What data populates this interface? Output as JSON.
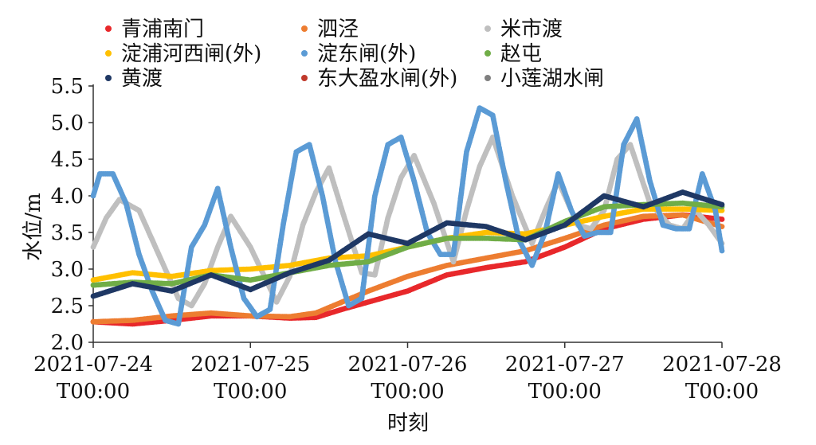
{
  "chart_data": {
    "type": "scatter",
    "xlabel": "时刻",
    "ylabel": "水位/m",
    "ylim": [
      2.0,
      5.5
    ],
    "xlim": [
      "2021-07-24T00:00",
      "2021-07-28T00:00"
    ],
    "yticks": [
      "2.0",
      "2.5",
      "3.0",
      "3.5",
      "4.0",
      "4.5",
      "5.0",
      "5.5"
    ],
    "xticks": [
      {
        "date": "2021-07-24",
        "time": "T00:00"
      },
      {
        "date": "2021-07-25",
        "time": "T00:00"
      },
      {
        "date": "2021-07-26",
        "time": "T00:00"
      },
      {
        "date": "2021-07-27",
        "time": "T00:00"
      },
      {
        "date": "2021-07-28",
        "time": "T00:00"
      }
    ],
    "legend_position": "top",
    "series": [
      {
        "name": "青浦南门",
        "color": "#e8282b",
        "points": [
          [
            "2021-07-24T00:00",
            2.28
          ],
          [
            "2021-07-24T06:00",
            2.25
          ],
          [
            "2021-07-24T12:00",
            2.3
          ],
          [
            "2021-07-24T18:00",
            2.36
          ],
          [
            "2021-07-25T00:00",
            2.36
          ],
          [
            "2021-07-25T06:00",
            2.33
          ],
          [
            "2021-07-25T10:00",
            2.34
          ],
          [
            "2021-07-25T14:00",
            2.45
          ],
          [
            "2021-07-25T18:00",
            2.55
          ],
          [
            "2021-07-26T00:00",
            2.7
          ],
          [
            "2021-07-26T06:00",
            2.92
          ],
          [
            "2021-07-26T12:00",
            3.02
          ],
          [
            "2021-07-26T18:00",
            3.1
          ],
          [
            "2021-07-27T00:00",
            3.3
          ],
          [
            "2021-07-27T06:00",
            3.55
          ],
          [
            "2021-07-27T12:00",
            3.68
          ],
          [
            "2021-07-27T18:00",
            3.74
          ],
          [
            "2021-07-28T00:00",
            3.68
          ]
        ]
      },
      {
        "name": "泗泾",
        "color": "#ed7d31",
        "points": [
          [
            "2021-07-24T00:00",
            2.28
          ],
          [
            "2021-07-24T06:00",
            2.3
          ],
          [
            "2021-07-24T12:00",
            2.36
          ],
          [
            "2021-07-24T18:00",
            2.4
          ],
          [
            "2021-07-25T00:00",
            2.36
          ],
          [
            "2021-07-25T06:00",
            2.35
          ],
          [
            "2021-07-25T10:00",
            2.4
          ],
          [
            "2021-07-25T14:00",
            2.55
          ],
          [
            "2021-07-25T18:00",
            2.7
          ],
          [
            "2021-07-26T00:00",
            2.9
          ],
          [
            "2021-07-26T06:00",
            3.05
          ],
          [
            "2021-07-26T12:00",
            3.15
          ],
          [
            "2021-07-26T18:00",
            3.25
          ],
          [
            "2021-07-27T00:00",
            3.42
          ],
          [
            "2021-07-27T06:00",
            3.6
          ],
          [
            "2021-07-27T12:00",
            3.72
          ],
          [
            "2021-07-27T18:00",
            3.74
          ],
          [
            "2021-07-28T00:00",
            3.58
          ]
        ]
      },
      {
        "name": "米市渡",
        "color": "#bfbfbf",
        "points": [
          [
            "2021-07-24T00:00",
            3.3
          ],
          [
            "2021-07-24T02:00",
            3.7
          ],
          [
            "2021-07-24T04:00",
            3.95
          ],
          [
            "2021-07-24T07:00",
            3.8
          ],
          [
            "2021-07-24T10:00",
            3.2
          ],
          [
            "2021-07-24T13:00",
            2.6
          ],
          [
            "2021-07-24T15:00",
            2.5
          ],
          [
            "2021-07-24T17:00",
            2.8
          ],
          [
            "2021-07-24T19:00",
            3.3
          ],
          [
            "2021-07-24T21:00",
            3.72
          ],
          [
            "2021-07-25T00:00",
            3.3
          ],
          [
            "2021-07-25T04:00",
            2.55
          ],
          [
            "2021-07-25T06:00",
            2.9
          ],
          [
            "2021-07-25T08:00",
            3.6
          ],
          [
            "2021-07-25T10:00",
            4.05
          ],
          [
            "2021-07-25T12:00",
            4.38
          ],
          [
            "2021-07-25T14:00",
            3.8
          ],
          [
            "2021-07-25T17:00",
            2.95
          ],
          [
            "2021-07-25T19:00",
            2.92
          ],
          [
            "2021-07-25T21:00",
            3.7
          ],
          [
            "2021-07-25T23:00",
            4.25
          ],
          [
            "2021-07-26T01:00",
            4.55
          ],
          [
            "2021-07-26T04:00",
            3.9
          ],
          [
            "2021-07-26T07:00",
            3.1
          ],
          [
            "2021-07-26T09:00",
            3.8
          ],
          [
            "2021-07-26T11:00",
            4.4
          ],
          [
            "2021-07-26T13:00",
            4.8
          ],
          [
            "2021-07-26T16:00",
            4.0
          ],
          [
            "2021-07-26T19:00",
            3.35
          ],
          [
            "2021-07-26T21:00",
            3.8
          ],
          [
            "2021-07-26T23:00",
            4.2
          ],
          [
            "2021-07-27T02:00",
            3.6
          ],
          [
            "2021-07-27T04:00",
            3.55
          ],
          [
            "2021-07-27T06:00",
            3.8
          ],
          [
            "2021-07-27T08:00",
            4.5
          ],
          [
            "2021-07-27T10:00",
            4.7
          ],
          [
            "2021-07-27T13:00",
            3.9
          ],
          [
            "2021-07-27T16:00",
            3.6
          ],
          [
            "2021-07-27T18:00",
            3.55
          ],
          [
            "2021-07-27T20:00",
            3.8
          ],
          [
            "2021-07-27T22:00",
            3.6
          ],
          [
            "2021-07-28T00:00",
            3.35
          ]
        ]
      },
      {
        "name": "淀浦河西闸(外)",
        "color": "#ffc000",
        "points": [
          [
            "2021-07-24T00:00",
            2.85
          ],
          [
            "2021-07-24T06:00",
            2.95
          ],
          [
            "2021-07-24T12:00",
            2.9
          ],
          [
            "2021-07-24T18:00",
            2.98
          ],
          [
            "2021-07-25T00:00",
            3.0
          ],
          [
            "2021-07-25T06:00",
            3.05
          ],
          [
            "2021-07-25T12:00",
            3.15
          ],
          [
            "2021-07-25T18:00",
            3.18
          ],
          [
            "2021-07-26T00:00",
            3.3
          ],
          [
            "2021-07-26T06:00",
            3.42
          ],
          [
            "2021-07-26T12:00",
            3.5
          ],
          [
            "2021-07-26T18:00",
            3.48
          ],
          [
            "2021-07-27T00:00",
            3.6
          ],
          [
            "2021-07-27T06:00",
            3.72
          ],
          [
            "2021-07-27T12:00",
            3.82
          ],
          [
            "2021-07-27T18:00",
            3.82
          ],
          [
            "2021-07-28T00:00",
            3.8
          ]
        ]
      },
      {
        "name": "淀东闸(外)",
        "color": "#5b9bd5",
        "points": [
          [
            "2021-07-24T00:00",
            4.0
          ],
          [
            "2021-07-24T01:00",
            4.3
          ],
          [
            "2021-07-24T03:00",
            4.3
          ],
          [
            "2021-07-24T05:00",
            3.9
          ],
          [
            "2021-07-24T07:00",
            3.2
          ],
          [
            "2021-07-24T09:00",
            2.7
          ],
          [
            "2021-07-24T11:00",
            2.3
          ],
          [
            "2021-07-24T13:00",
            2.25
          ],
          [
            "2021-07-24T15:00",
            3.3
          ],
          [
            "2021-07-24T17:00",
            3.6
          ],
          [
            "2021-07-24T19:00",
            4.1
          ],
          [
            "2021-07-24T21:00",
            3.3
          ],
          [
            "2021-07-24T23:00",
            2.6
          ],
          [
            "2021-07-25T01:00",
            2.35
          ],
          [
            "2021-07-25T03:00",
            2.45
          ],
          [
            "2021-07-25T05:00",
            3.6
          ],
          [
            "2021-07-25T07:00",
            4.6
          ],
          [
            "2021-07-25T09:00",
            4.7
          ],
          [
            "2021-07-25T11:00",
            4.0
          ],
          [
            "2021-07-25T13:00",
            3.1
          ],
          [
            "2021-07-25T15:00",
            2.5
          ],
          [
            "2021-07-25T17:00",
            2.6
          ],
          [
            "2021-07-25T19:00",
            4.0
          ],
          [
            "2021-07-25T21:00",
            4.7
          ],
          [
            "2021-07-25T23:00",
            4.8
          ],
          [
            "2021-07-26T01:00",
            4.2
          ],
          [
            "2021-07-26T03:00",
            3.5
          ],
          [
            "2021-07-26T05:00",
            3.2
          ],
          [
            "2021-07-26T07:00",
            3.2
          ],
          [
            "2021-07-26T09:00",
            4.6
          ],
          [
            "2021-07-26T11:00",
            5.2
          ],
          [
            "2021-07-26T13:00",
            5.1
          ],
          [
            "2021-07-26T15:00",
            4.2
          ],
          [
            "2021-07-26T17:00",
            3.4
          ],
          [
            "2021-07-26T19:00",
            3.05
          ],
          [
            "2021-07-26T21:00",
            3.5
          ],
          [
            "2021-07-26T23:00",
            4.3
          ],
          [
            "2021-07-27T01:00",
            3.8
          ],
          [
            "2021-07-27T03:00",
            3.45
          ],
          [
            "2021-07-27T05:00",
            3.5
          ],
          [
            "2021-07-27T07:00",
            3.5
          ],
          [
            "2021-07-27T09:00",
            4.7
          ],
          [
            "2021-07-27T11:00",
            5.05
          ],
          [
            "2021-07-27T13:00",
            4.2
          ],
          [
            "2021-07-27T15:00",
            3.6
          ],
          [
            "2021-07-27T17:00",
            3.55
          ],
          [
            "2021-07-27T19:00",
            3.55
          ],
          [
            "2021-07-27T21:00",
            4.3
          ],
          [
            "2021-07-27T23:00",
            3.8
          ],
          [
            "2021-07-28T00:00",
            3.25
          ]
        ]
      },
      {
        "name": "赵屯",
        "color": "#70ad47",
        "points": [
          [
            "2021-07-24T00:00",
            2.78
          ],
          [
            "2021-07-24T06:00",
            2.82
          ],
          [
            "2021-07-24T12:00",
            2.8
          ],
          [
            "2021-07-24T18:00",
            2.92
          ],
          [
            "2021-07-25T00:00",
            2.85
          ],
          [
            "2021-07-25T06:00",
            2.95
          ],
          [
            "2021-07-25T12:00",
            3.05
          ],
          [
            "2021-07-25T18:00",
            3.1
          ],
          [
            "2021-07-26T00:00",
            3.3
          ],
          [
            "2021-07-26T06:00",
            3.42
          ],
          [
            "2021-07-26T12:00",
            3.42
          ],
          [
            "2021-07-26T18:00",
            3.4
          ],
          [
            "2021-07-27T00:00",
            3.65
          ],
          [
            "2021-07-27T06:00",
            3.85
          ],
          [
            "2021-07-27T12:00",
            3.88
          ],
          [
            "2021-07-27T18:00",
            3.9
          ],
          [
            "2021-07-28T00:00",
            3.85
          ]
        ]
      },
      {
        "name": "黄渡",
        "color": "#1f3864",
        "points": [
          [
            "2021-07-24T00:00",
            2.63
          ],
          [
            "2021-07-24T06:00",
            2.8
          ],
          [
            "2021-07-24T12:00",
            2.7
          ],
          [
            "2021-07-24T18:00",
            2.92
          ],
          [
            "2021-07-25T00:00",
            2.72
          ],
          [
            "2021-07-25T06:00",
            2.95
          ],
          [
            "2021-07-25T12:00",
            3.12
          ],
          [
            "2021-07-25T18:00",
            3.48
          ],
          [
            "2021-07-26T00:00",
            3.35
          ],
          [
            "2021-07-26T06:00",
            3.63
          ],
          [
            "2021-07-26T12:00",
            3.58
          ],
          [
            "2021-07-26T18:00",
            3.4
          ],
          [
            "2021-07-27T00:00",
            3.6
          ],
          [
            "2021-07-27T06:00",
            4.0
          ],
          [
            "2021-07-27T12:00",
            3.85
          ],
          [
            "2021-07-27T18:00",
            4.05
          ],
          [
            "2021-07-28T00:00",
            3.88
          ]
        ]
      },
      {
        "name": "东大盈水闸(外)",
        "color": "#c0392b",
        "points": []
      },
      {
        "name": "小莲湖水闸",
        "color": "#7f7f7f",
        "points": []
      }
    ]
  }
}
